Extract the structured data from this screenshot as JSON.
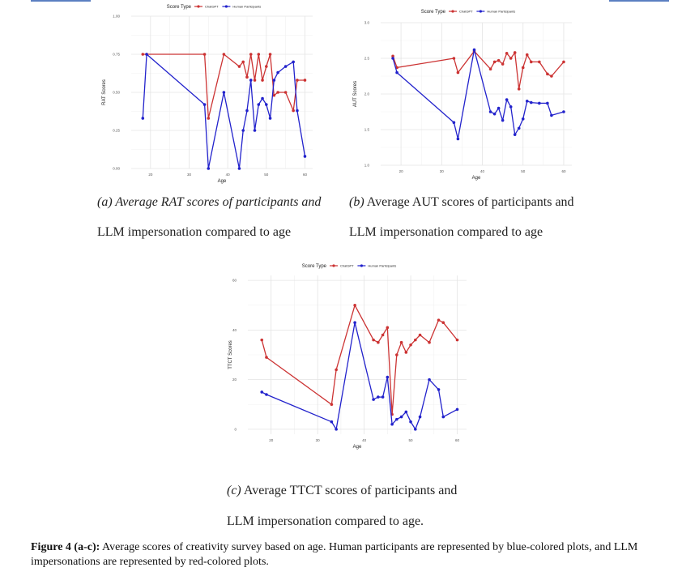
{
  "chart_data": [
    {
      "type": "line",
      "xlabel": "Age",
      "ylabel": "RAT Scores",
      "legend_title": "Score Type",
      "legend_position": "top",
      "xlim": [
        15,
        62
      ],
      "ylim": [
        0,
        1.0
      ],
      "xticks": [
        20,
        30,
        40,
        50,
        60
      ],
      "yticks": [
        0.0,
        0.25,
        0.5,
        0.75,
        1.0
      ],
      "ytick_labels": [
        "0.00",
        "0.25",
        "0.50",
        "0.75",
        "1.00"
      ],
      "grid": true,
      "series": [
        {
          "name": "ChatGPT",
          "color": "#cc3333",
          "x": [
            18,
            19,
            34,
            35,
            39,
            43,
            44,
            45,
            46,
            47,
            48,
            49,
            50,
            51,
            52,
            53,
            55,
            57,
            58,
            60
          ],
          "y": [
            0.75,
            0.75,
            0.75,
            0.33,
            0.75,
            0.67,
            0.7,
            0.6,
            0.75,
            0.58,
            0.75,
            0.58,
            0.67,
            0.75,
            0.48,
            0.5,
            0.5,
            0.38,
            0.58,
            0.58
          ]
        },
        {
          "name": "Human Participants",
          "color": "#2222cc",
          "x": [
            18,
            19,
            34,
            35,
            39,
            43,
            44,
            45,
            46,
            47,
            48,
            49,
            50,
            51,
            52,
            53,
            55,
            57,
            58,
            60
          ],
          "y": [
            0.33,
            0.75,
            0.42,
            0.0,
            0.5,
            0.0,
            0.25,
            0.38,
            0.58,
            0.25,
            0.42,
            0.46,
            0.42,
            0.33,
            0.58,
            0.63,
            0.67,
            0.7,
            0.38,
            0.08
          ]
        }
      ]
    },
    {
      "type": "line",
      "xlabel": "Age",
      "ylabel": "AUT Scores",
      "legend_title": "Score Type",
      "legend_position": "top",
      "xlim": [
        15,
        62
      ],
      "ylim": [
        1.0,
        3.0
      ],
      "xticks": [
        20,
        30,
        40,
        50,
        60
      ],
      "yticks": [
        1.0,
        1.5,
        2.0,
        2.5,
        3.0
      ],
      "ytick_labels": [
        "1.0",
        "1.5",
        "2.0",
        "2.5",
        "3.0"
      ],
      "grid": true,
      "series": [
        {
          "name": "ChatGPT",
          "color": "#cc3333",
          "x": [
            18,
            19,
            33,
            34,
            38,
            42,
            43,
            44,
            45,
            46,
            47,
            48,
            49,
            50,
            51,
            52,
            54,
            56,
            57,
            60
          ],
          "y": [
            2.53,
            2.37,
            2.5,
            2.3,
            2.6,
            2.35,
            2.45,
            2.47,
            2.42,
            2.57,
            2.5,
            2.58,
            2.07,
            2.37,
            2.55,
            2.45,
            2.45,
            2.28,
            2.25,
            2.45
          ]
        },
        {
          "name": "Human Participants",
          "color": "#2222cc",
          "x": [
            18,
            19,
            33,
            34,
            38,
            42,
            43,
            44,
            45,
            46,
            47,
            48,
            49,
            50,
            51,
            52,
            54,
            56,
            57,
            60
          ],
          "y": [
            2.5,
            2.3,
            1.6,
            1.37,
            2.62,
            1.75,
            1.72,
            1.8,
            1.63,
            1.92,
            1.82,
            1.43,
            1.52,
            1.65,
            1.9,
            1.88,
            1.87,
            1.87,
            1.7,
            1.75
          ]
        }
      ]
    },
    {
      "type": "line",
      "xlabel": "Age",
      "ylabel": "TTCT Scores",
      "legend_title": "Score Type",
      "legend_position": "top",
      "xlim": [
        15,
        62
      ],
      "ylim": [
        -2,
        62
      ],
      "xticks": [
        20,
        30,
        40,
        50,
        60
      ],
      "yticks": [
        0,
        20,
        40,
        60
      ],
      "ytick_labels": [
        "0",
        "20",
        "40",
        "60"
      ],
      "grid": true,
      "series": [
        {
          "name": "ChatGPT",
          "color": "#cc3333",
          "x": [
            18,
            19,
            33,
            34,
            38,
            42,
            43,
            44,
            45,
            46,
            47,
            48,
            49,
            50,
            51,
            52,
            54,
            56,
            57,
            60
          ],
          "y": [
            36,
            29,
            10,
            24,
            50,
            36,
            35,
            38,
            41,
            6,
            30,
            35,
            31,
            34,
            36,
            38,
            35,
            44,
            43,
            36
          ]
        },
        {
          "name": "Human Participants",
          "color": "#2222cc",
          "x": [
            18,
            19,
            33,
            34,
            38,
            42,
            43,
            44,
            45,
            46,
            47,
            48,
            49,
            50,
            51,
            52,
            54,
            56,
            57,
            60
          ],
          "y": [
            15,
            14,
            3,
            0,
            43,
            12,
            13,
            13,
            21,
            2,
            4,
            5,
            7,
            3,
            0,
            5,
            20,
            16,
            5,
            8
          ]
        }
      ]
    }
  ],
  "captions": {
    "a_label": "(a)",
    "a_line1": " Average RAT scores of participants and",
    "a_line2": "LLM impersonation compared to age",
    "b_label": "(b)",
    "b_line1": " Average AUT scores of participants and",
    "b_line2": "LLM impersonation compared to age",
    "c_label": "(c)",
    "c_line1": " Average TTCT scores of participants and",
    "c_line2": "LLM impersonation compared to age."
  },
  "figure_caption": {
    "label": "Figure 4 (a-c):",
    "text": " Average scores of creativity survey based on age. Human participants are represented by blue-colored plots, and LLM impersonations are represented by red-colored plots."
  }
}
